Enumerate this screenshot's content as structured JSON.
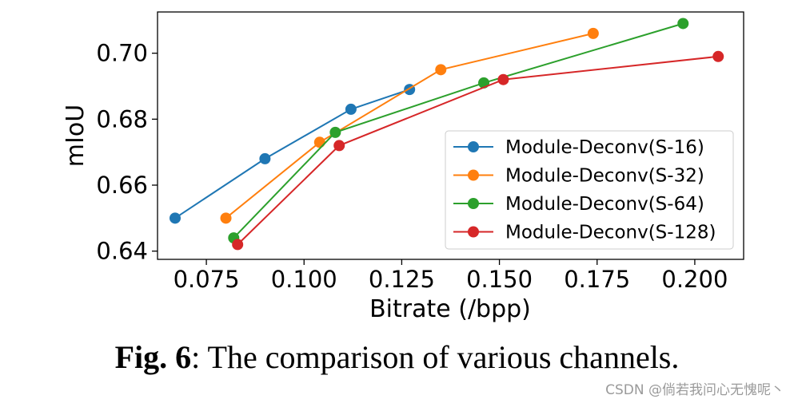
{
  "chart_data": {
    "type": "line",
    "xlabel": "Bitrate (/bpp)",
    "ylabel": "mIoU",
    "xlim": [
      0.0625,
      0.2125
    ],
    "ylim": [
      0.6375,
      0.7125
    ],
    "xticks": [
      "0.075",
      "0.100",
      "0.125",
      "0.150",
      "0.175",
      "0.200"
    ],
    "yticks": [
      "0.64",
      "0.66",
      "0.68",
      "0.70"
    ],
    "grid": false,
    "legend_position": "lower-right",
    "series": [
      {
        "name": "Module-Deconv(S-16)",
        "color": "#1f77b4",
        "points": [
          [
            0.067,
            0.65
          ],
          [
            0.09,
            0.668
          ],
          [
            0.112,
            0.683
          ],
          [
            0.127,
            0.689
          ]
        ]
      },
      {
        "name": "Module-Deconv(S-32)",
        "color": "#ff7f0e",
        "points": [
          [
            0.08,
            0.65
          ],
          [
            0.104,
            0.673
          ],
          [
            0.135,
            0.695
          ],
          [
            0.174,
            0.706
          ]
        ]
      },
      {
        "name": "Module-Deconv(S-64)",
        "color": "#2ca02c",
        "points": [
          [
            0.082,
            0.644
          ],
          [
            0.108,
            0.676
          ],
          [
            0.146,
            0.691
          ],
          [
            0.197,
            0.709
          ]
        ]
      },
      {
        "name": "Module-Deconv(S-128)",
        "color": "#d62728",
        "points": [
          [
            0.083,
            0.642
          ],
          [
            0.109,
            0.672
          ],
          [
            0.151,
            0.692
          ],
          [
            0.206,
            0.699
          ]
        ]
      }
    ]
  },
  "caption": {
    "label": "Fig. 6",
    "text": ": The comparison of various channels."
  },
  "watermark": "CSDN @倘若我问心无愧呢丶"
}
